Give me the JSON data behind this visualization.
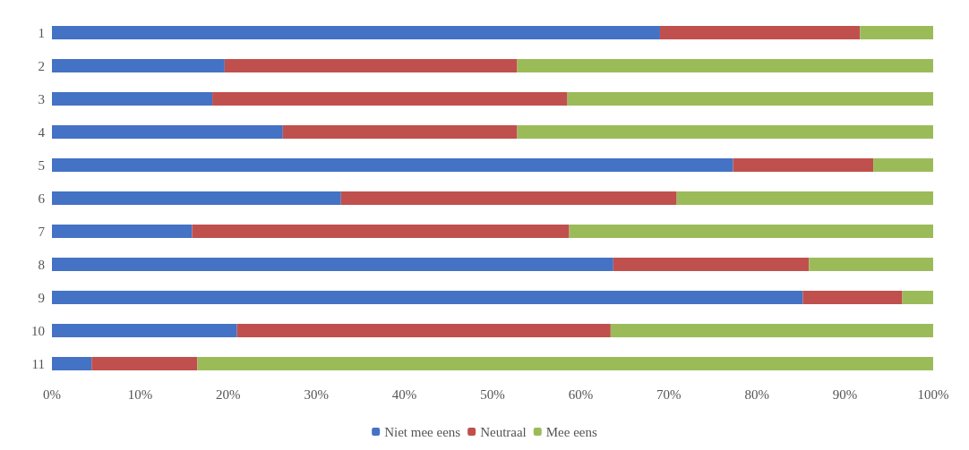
{
  "chart_data": {
    "type": "bar",
    "orientation": "horizontal",
    "stacked": true,
    "categories": [
      "1",
      "2",
      "3",
      "4",
      "5",
      "6",
      "7",
      "8",
      "9",
      "10",
      "11"
    ],
    "series": [
      {
        "name": "Niet mee eens",
        "color": "#4472c4",
        "values": [
          69,
          19.6,
          18.2,
          26.2,
          77.3,
          32.8,
          15.9,
          63.7,
          85.2,
          21,
          4.5
        ]
      },
      {
        "name": "Neutraal",
        "color": "#c0504d",
        "values": [
          22.7,
          33.2,
          40.3,
          26.6,
          15.9,
          38.1,
          42.8,
          22.2,
          11.3,
          42.4,
          12
        ]
      },
      {
        "name": "Mee eens",
        "color": "#9bbb59",
        "values": [
          8.3,
          47.2,
          41.5,
          47.2,
          6.8,
          29.1,
          41.3,
          14.1,
          3.5,
          36.6,
          83.5
        ]
      }
    ],
    "xlim": [
      0,
      100
    ],
    "xticks": [
      {
        "value": 0,
        "label": "0%"
      },
      {
        "value": 10,
        "label": "10%"
      },
      {
        "value": 20,
        "label": "20%"
      },
      {
        "value": 30,
        "label": "30%"
      },
      {
        "value": 40,
        "label": "40%"
      },
      {
        "value": 50,
        "label": "50%"
      },
      {
        "value": 60,
        "label": "60%"
      },
      {
        "value": 70,
        "label": "70%"
      },
      {
        "value": 80,
        "label": "80%"
      },
      {
        "value": 90,
        "label": "90%"
      },
      {
        "value": 100,
        "label": "100%"
      }
    ],
    "grid": false,
    "legend": "bottom"
  }
}
